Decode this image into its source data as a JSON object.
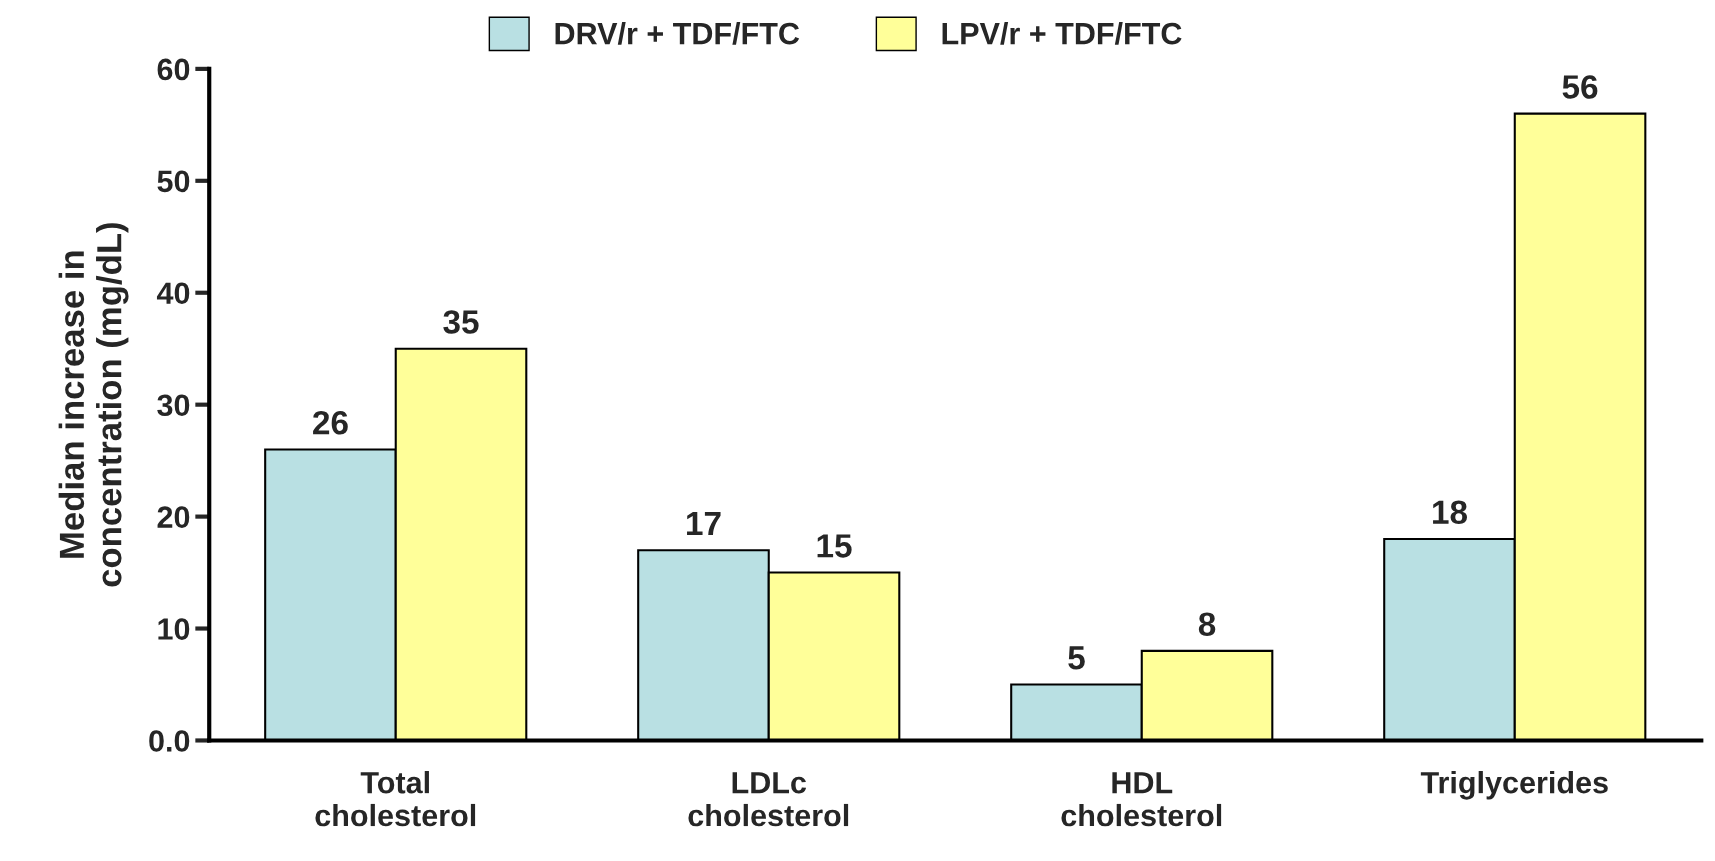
{
  "chart_data": {
    "type": "bar",
    "categories": [
      "Total\ncholesterol",
      "LDLc\ncholesterol",
      "HDL\ncholesterol",
      "Triglycerides"
    ],
    "series": [
      {
        "name": "DRV/r + TDF/FTC",
        "color": "#b9e0e3",
        "values": [
          26,
          17,
          5,
          18
        ]
      },
      {
        "name": "LPV/r + TDF/FTC",
        "color": "#ffff99",
        "values": [
          35,
          15,
          8,
          56
        ]
      }
    ],
    "ylabel": "Median increase in\nconcentration (mg/dL)",
    "ylim": [
      0,
      60
    ],
    "yticks": [
      {
        "value": 0,
        "label": "0.0"
      },
      10,
      20,
      30,
      40,
      50,
      60
    ],
    "data_labels": true,
    "legend": "top",
    "grid": false
  }
}
